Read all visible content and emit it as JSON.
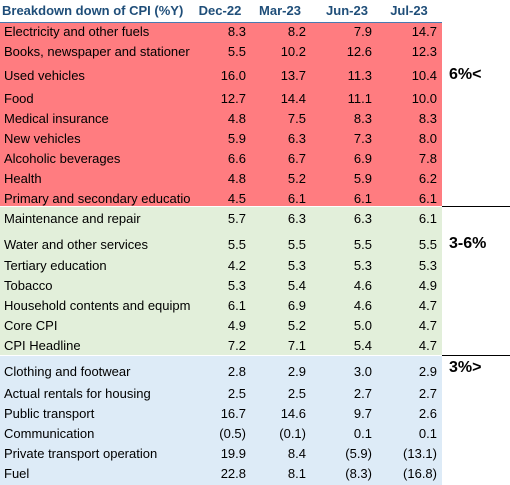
{
  "header": {
    "title": "Breakdown down of CPI (%Y)",
    "periods": [
      "Dec-22",
      "Mar-23",
      "Jun-23",
      "Jul-23"
    ]
  },
  "groups": [
    {
      "label": "6%<",
      "color": "#ff7c80",
      "rows": [
        {
          "name": "Electricity and other fuels",
          "values": [
            "8.3",
            "8.2",
            "7.9",
            "14.7"
          ]
        },
        {
          "name": "Books, newspaper and stationery",
          "values": [
            "5.5",
            "10.2",
            "12.6",
            "12.3"
          ]
        },
        {
          "name": "Used vehicles",
          "values": [
            "16.0",
            "13.7",
            "11.3",
            "10.4"
          ]
        },
        {
          "name": "Food",
          "values": [
            "12.7",
            "14.4",
            "11.1",
            "10.0"
          ]
        },
        {
          "name": "Medical insurance",
          "values": [
            "4.8",
            "7.5",
            "8.3",
            "8.3"
          ]
        },
        {
          "name": "New vehicles",
          "values": [
            "5.9",
            "6.3",
            "7.3",
            "8.0"
          ]
        },
        {
          "name": "Alcoholic beverages",
          "values": [
            "6.6",
            "6.7",
            "6.9",
            "7.8"
          ]
        },
        {
          "name": "Health",
          "values": [
            "4.8",
            "5.2",
            "5.9",
            "6.2"
          ]
        },
        {
          "name": "Primary and secondary education",
          "values": [
            "4.5",
            "6.1",
            "6.1",
            "6.1"
          ]
        }
      ]
    },
    {
      "label": "3-6%",
      "color": "#e2efda",
      "rows": [
        {
          "name": "Maintenance and repair",
          "values": [
            "5.7",
            "6.3",
            "6.3",
            "6.1"
          ]
        },
        {
          "name": "Water and other services",
          "values": [
            "5.5",
            "5.5",
            "5.5",
            "5.5"
          ]
        },
        {
          "name": "Tertiary education",
          "values": [
            "4.2",
            "5.3",
            "5.3",
            "5.3"
          ]
        },
        {
          "name": "Tobacco",
          "values": [
            "5.3",
            "5.4",
            "4.6",
            "4.9"
          ]
        },
        {
          "name": "Household contents and equipment",
          "values": [
            "6.1",
            "6.9",
            "4.6",
            "4.7"
          ]
        },
        {
          "name": "Core CPI",
          "values": [
            "4.9",
            "5.2",
            "5.0",
            "4.7"
          ]
        },
        {
          "name": "CPI Headline",
          "values": [
            "7.2",
            "7.1",
            "5.4",
            "4.7"
          ]
        }
      ]
    },
    {
      "label": "3%>",
      "color": "#ddebf7",
      "rows": [
        {
          "name": "Clothing and footwear",
          "values": [
            "2.8",
            "2.9",
            "3.0",
            "2.9"
          ]
        },
        {
          "name": "Actual rentals for housing",
          "values": [
            "2.5",
            "2.5",
            "2.7",
            "2.7"
          ]
        },
        {
          "name": "Public transport",
          "values": [
            "16.7",
            "14.6",
            "9.7",
            "2.6"
          ]
        },
        {
          "name": "Communication",
          "values": [
            "(0.5)",
            "(0.1)",
            "0.1",
            "0.1"
          ]
        },
        {
          "name": "Private transport operation",
          "values": [
            "19.9",
            "8.4",
            "(5.9)",
            "(13.1)"
          ]
        },
        {
          "name": "Fuel",
          "values": [
            "22.8",
            "8.1",
            "(8.3)",
            "(16.8)"
          ]
        }
      ]
    }
  ]
}
